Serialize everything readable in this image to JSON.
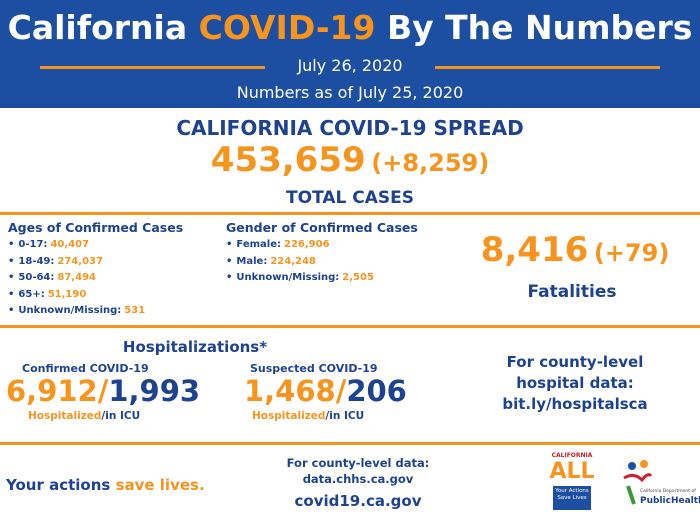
{
  "header": {
    "title": {
      "pre": "California",
      "highlight": "COVID-19",
      "post": "By The Numbers"
    },
    "date": "July 26, 2020",
    "as_of": "Numbers as of July 25, 2020"
  },
  "spread": {
    "heading": "CALIFORNIA COVID-19 SPREAD",
    "total": "453,659",
    "change": "(+8,259)",
    "label": "TOTAL CASES"
  },
  "ages": {
    "heading": "Ages of Confirmed Cases",
    "rows": [
      {
        "label": "0-17:",
        "value": "40,407"
      },
      {
        "label": "18-49:",
        "value": "274,037"
      },
      {
        "label": "50-64:",
        "value": "87,494"
      },
      {
        "label": "65+:",
        "value": "51,190"
      },
      {
        "label": "Unknown/Missing:",
        "value": "531"
      }
    ]
  },
  "gender": {
    "heading": "Gender of Confirmed Cases",
    "rows": [
      {
        "label": "Female:",
        "value": "226,906"
      },
      {
        "label": "Male:",
        "value": "224,248"
      },
      {
        "label": "Unknown/Missing:",
        "value": "2,505"
      }
    ]
  },
  "fatalities": {
    "total": "8,416",
    "change": "(+79)",
    "label": "Fatalities"
  },
  "hospitalizations": {
    "heading": "Hospitalizations*",
    "confirmed": {
      "label": "Confirmed COVID-19",
      "hospitalized": "6,912",
      "separator": "/",
      "icu": "1,993",
      "hospitalized_label": "Hospitalized",
      "icu_label": "/in ICU"
    },
    "suspected": {
      "label": "Suspected COVID-19",
      "hospitalized": "1,468",
      "separator": "/",
      "icu": "206",
      "hospitalized_label": "Hospitalized",
      "icu_label": "/in ICU"
    },
    "county": [
      "For county-level",
      "hospital data:",
      "bit.ly/hospitalsca"
    ]
  },
  "footer": {
    "actions": {
      "pre": "Your actions",
      "highlight": "save lives."
    },
    "county_data": [
      "For county-level data:",
      "data.chhs.ca.gov"
    ],
    "site": "covid19.ca.gov",
    "logo_all": {
      "top": "CALIFORNIA",
      "main": "ALL",
      "tag": "Your Actions Save Lives"
    },
    "logo_cdph": {
      "small": "California Department of",
      "main": "PublicHealth"
    }
  }
}
